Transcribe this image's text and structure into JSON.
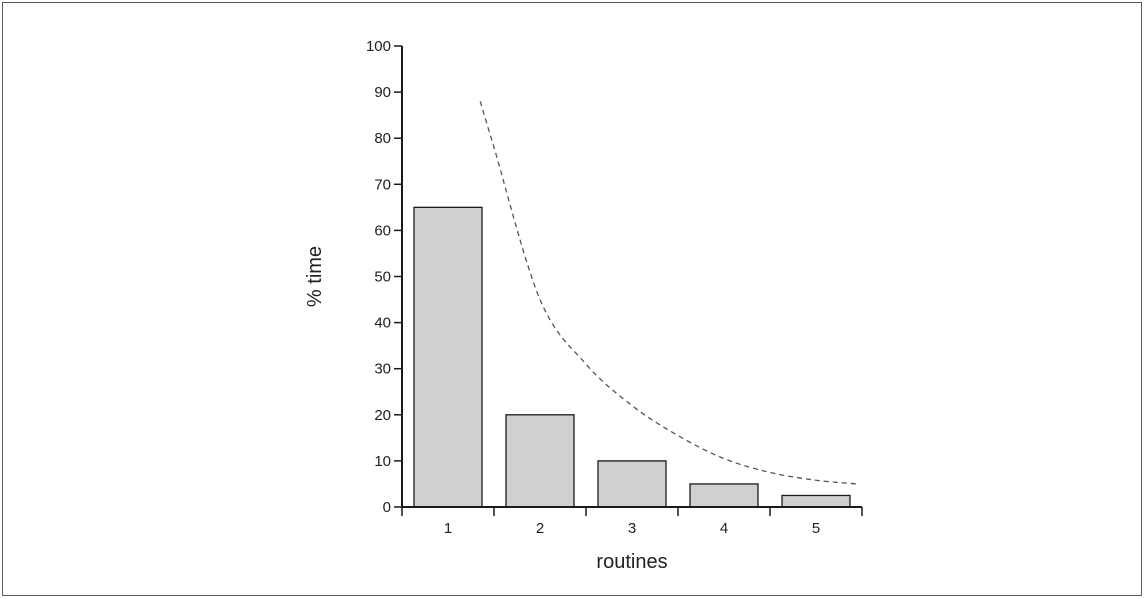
{
  "chart_data": {
    "type": "bar",
    "title": "",
    "xlabel": "routines",
    "ylabel": "% time",
    "categories": [
      "1",
      "2",
      "3",
      "4",
      "5"
    ],
    "values": [
      65,
      20,
      10,
      5,
      2.5
    ],
    "ylim": [
      0,
      100
    ],
    "yticks": [
      "0",
      "10",
      "20",
      "30",
      "40",
      "50",
      "60",
      "70",
      "80",
      "90",
      "100"
    ],
    "grid": false,
    "legend": "none",
    "trend_curve": {
      "style": "dashed",
      "description_points_x": [
        1.35,
        1.5,
        2,
        2.5,
        3,
        3.5,
        4,
        4.5,
        5,
        5.45
      ],
      "description_points_y": [
        88,
        78,
        45,
        31,
        22,
        15.5,
        10.5,
        7.5,
        5.8,
        5
      ]
    },
    "colors": {
      "bar_fill": "#cfd1d0",
      "bar_stroke": "#1a1a1a",
      "axis": "#1a1a1a",
      "curve": "#555555"
    }
  }
}
